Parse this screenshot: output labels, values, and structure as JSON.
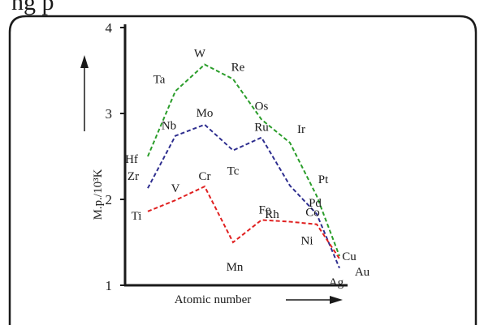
{
  "page_header_fragment": "ng p",
  "chart_data": {
    "type": "line",
    "xlabel": "Atomic number",
    "ylabel": "M.p./10³K",
    "ylim": [
      1,
      4
    ],
    "y_ticks": [
      "1",
      "2",
      "3",
      "4"
    ],
    "grid": false,
    "legend": "none",
    "series": [
      {
        "color": "#2a9d2a",
        "points": [
          {
            "label": "Hf",
            "y": 2.5
          },
          {
            "label": "Ta",
            "y": 3.26
          },
          {
            "label": "W",
            "y": 3.57
          },
          {
            "label": "Re",
            "y": 3.4
          },
          {
            "label": "Os",
            "y": 2.93
          },
          {
            "label": "Ir",
            "y": 2.66
          },
          {
            "label": "Pt",
            "y": 2.04
          },
          {
            "label": "Au",
            "y": 1.34
          }
        ]
      },
      {
        "color": "#2e2e8f",
        "points": [
          {
            "label": "Zr",
            "y": 2.13
          },
          {
            "label": "Nb",
            "y": 2.74
          },
          {
            "label": "Mo",
            "y": 2.87
          },
          {
            "label": "Tc",
            "y": 2.57
          },
          {
            "label": "Ru",
            "y": 2.72
          },
          {
            "label": "Rh",
            "y": 2.16
          },
          {
            "label": "Pd",
            "y": 1.83
          },
          {
            "label": "Ag",
            "y": 1.2
          }
        ]
      },
      {
        "color": "#e02020",
        "points": [
          {
            "label": "Ti",
            "y": 1.86
          },
          {
            "label": "V",
            "y": 1.99
          },
          {
            "label": "Cr",
            "y": 2.15
          },
          {
            "label": "Mn",
            "y": 1.5
          },
          {
            "label": "Fe",
            "y": 1.76
          },
          {
            "label": "Co",
            "y": 1.74
          },
          {
            "label": "Ni",
            "y": 1.71
          },
          {
            "label": "Cu",
            "y": 1.31
          }
        ]
      }
    ]
  }
}
